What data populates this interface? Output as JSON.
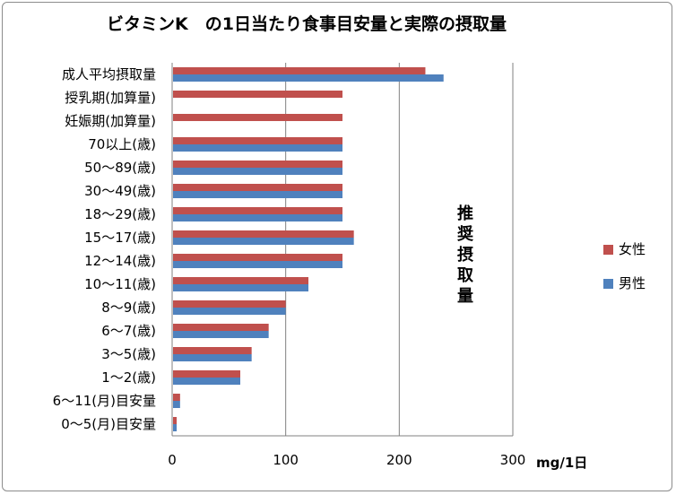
{
  "chart_data": {
    "type": "bar",
    "orientation": "horizontal",
    "title": "ビタミンK　の1日当たり食事目安量と実際の摂取量",
    "xlabel": "mg/1日",
    "xlim": [
      0,
      300
    ],
    "xticks": [
      0,
      100,
      200,
      300
    ],
    "grid": true,
    "legend_position": "right",
    "categories": [
      "成人平均摂取量",
      "授乳期(加算量)",
      "妊娠期(加算量)",
      "70以上(歳)",
      "50～89(歳)",
      "30～49(歳)",
      "18～29(歳)",
      "15～17(歳)",
      "12～14(歳)",
      "10～11(歳)",
      "8～9(歳)",
      "6～7(歳)",
      "3～5(歳)",
      "1～2(歳)",
      "6～11(月)目安量",
      "0～5(月)目安量"
    ],
    "series": [
      {
        "name": "女性",
        "color": "#c0504d",
        "values": [
          223,
          150,
          150,
          150,
          150,
          150,
          150,
          160,
          150,
          120,
          100,
          85,
          70,
          60,
          7,
          4
        ]
      },
      {
        "name": "男性",
        "color": "#4f81bd",
        "values": [
          239,
          null,
          null,
          150,
          150,
          150,
          150,
          160,
          150,
          120,
          100,
          85,
          70,
          60,
          7,
          4
        ]
      }
    ],
    "annotation": "推奨摂取量"
  }
}
